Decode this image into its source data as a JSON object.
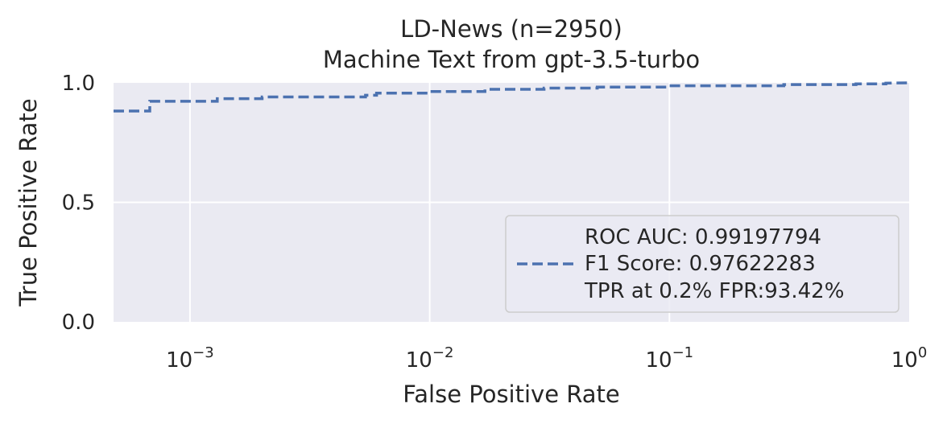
{
  "chart_data": {
    "type": "line",
    "title": "LD-News (n=2950)",
    "subtitle": "Machine Text from gpt-3.5-turbo",
    "xlabel": "False Positive Rate",
    "ylabel": "True Positive Rate",
    "xscale": "log",
    "xlim": [
      0.00048,
      1.0
    ],
    "ylim": [
      0.0,
      1.0
    ],
    "x_ticks": [
      {
        "value": 0.001,
        "base": "10",
        "exp": "−3"
      },
      {
        "value": 0.01,
        "base": "10",
        "exp": "−2"
      },
      {
        "value": 0.1,
        "base": "10",
        "exp": "−1"
      },
      {
        "value": 1.0,
        "base": "10",
        "exp": "0"
      }
    ],
    "y_ticks": [
      {
        "value": 0.0,
        "label": "0.0"
      },
      {
        "value": 0.5,
        "label": "0.5"
      },
      {
        "value": 1.0,
        "label": "1.0"
      }
    ],
    "grid": true,
    "legend_position": "lower-right",
    "legend_lines": [
      "ROC AUC: 0.99197794",
      "F1 Score: 0.97622283",
      "TPR at 0.2% FPR:93.42%"
    ],
    "series": [
      {
        "style": "dashed",
        "color": "#4c72b0",
        "x": [
          0.00048,
          0.00068,
          0.00068,
          0.0013,
          0.0013,
          0.002,
          0.002,
          0.0054,
          0.0054,
          0.006,
          0.006,
          0.01,
          0.01,
          0.017,
          0.017,
          0.03,
          0.03,
          0.05,
          0.05,
          0.1,
          0.1,
          0.3,
          0.3,
          0.6,
          0.6,
          0.8,
          0.8,
          1.0
        ],
        "y": [
          0.882,
          0.882,
          0.923,
          0.923,
          0.934,
          0.934,
          0.941,
          0.941,
          0.948,
          0.948,
          0.957,
          0.957,
          0.964,
          0.964,
          0.973,
          0.973,
          0.978,
          0.978,
          0.982,
          0.982,
          0.988,
          0.988,
          0.993,
          0.993,
          0.996,
          0.996,
          0.999,
          1.0
        ]
      }
    ]
  }
}
